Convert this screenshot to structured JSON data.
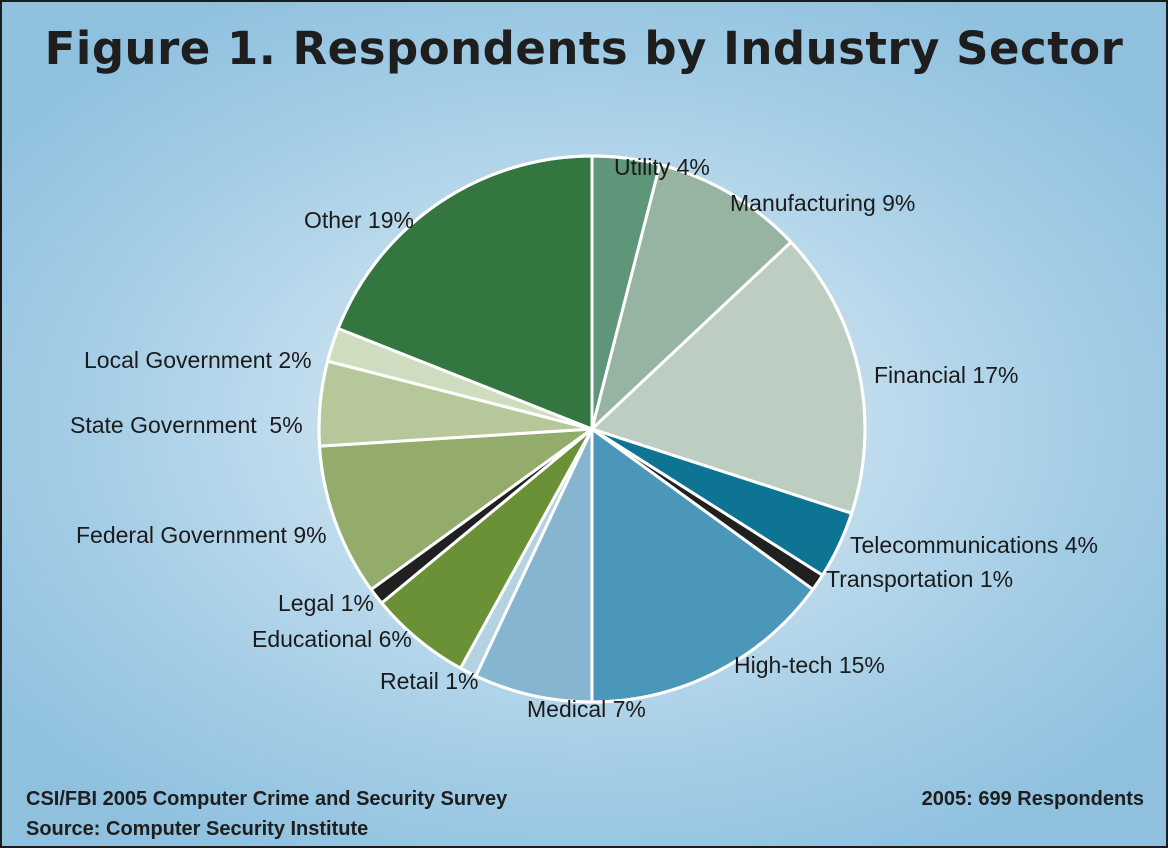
{
  "chart_data": {
    "type": "pie",
    "title": "Figure 1. Respondents by Industry Sector",
    "slices": [
      {
        "name": "Utility",
        "value": 4,
        "label": "Utility 4%",
        "color": "#5e9679"
      },
      {
        "name": "Manufacturing",
        "value": 9,
        "label": "Manufacturing 9%",
        "color": "#97b3a2"
      },
      {
        "name": "Financial",
        "value": 17,
        "label": "Financial 17%",
        "color": "#bccdc2"
      },
      {
        "name": "Telecommunications",
        "value": 4,
        "label": "Telecommunications 4%",
        "color": "#0e7493"
      },
      {
        "name": "Transportation",
        "value": 1,
        "label": "Transportation 1%",
        "color": "#202020"
      },
      {
        "name": "High-tech",
        "value": 15,
        "label": "High-tech 15%",
        "color": "#4b97b9"
      },
      {
        "name": "Medical",
        "value": 7,
        "label": "Medical 7%",
        "color": "#86b5cf"
      },
      {
        "name": "Retail",
        "value": 1,
        "label": "Retail 1%",
        "color": "#b4d2e2"
      },
      {
        "name": "Educational",
        "value": 6,
        "label": "Educational 6%",
        "color": "#6b9136"
      },
      {
        "name": "Legal",
        "value": 1,
        "label": "Legal 1%",
        "color": "#202020"
      },
      {
        "name": "Federal Government",
        "value": 9,
        "label": "Federal Government 9%",
        "color": "#93ab6b"
      },
      {
        "name": "State Government",
        "value": 5,
        "label": "State Government  5%",
        "color": "#b6c79a"
      },
      {
        "name": "Local Government",
        "value": 2,
        "label": "Local Government 2%",
        "color": "#cfdcbf"
      },
      {
        "name": "Other",
        "value": 19,
        "label": "Other 19%",
        "color": "#33763f"
      }
    ]
  },
  "footer": {
    "survey": "CSI/FBI 2005 Computer Crime and Security Survey",
    "source": "Source: Computer Security Institute",
    "respondents": "2005: 699 Respondents"
  }
}
